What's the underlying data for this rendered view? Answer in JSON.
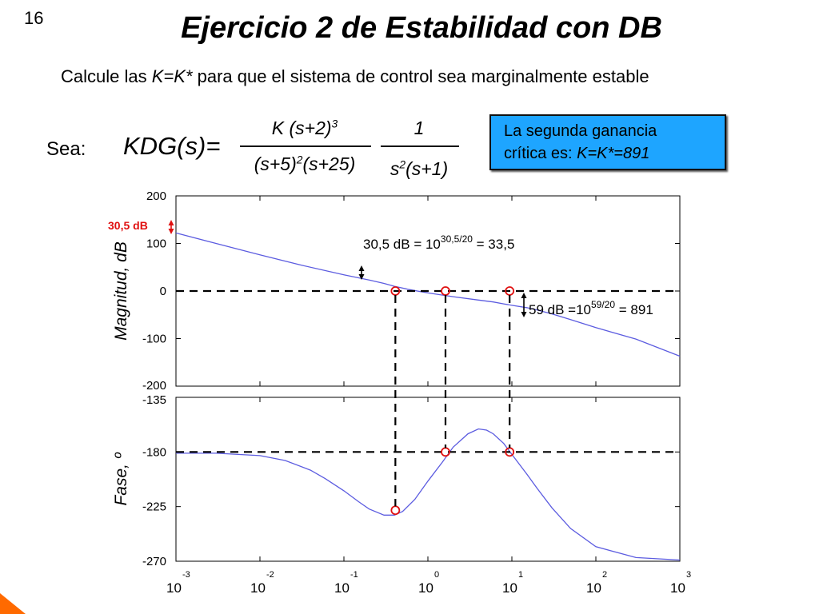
{
  "slide": {
    "number": "16",
    "title": "Ejercicio 2 de Estabilidad con DB",
    "statement_pre": "Calcule las ",
    "statement_k": "K=K*",
    "statement_post": " para que el sistema de control sea marginalmente estable",
    "sea_label": "Sea:",
    "kdg_label": "KDG(s)=",
    "frac1": {
      "num_base": "K (s+2)",
      "num_exp": "3",
      "den_a": "(s+5)",
      "den_a_exp": "2",
      "den_b": "(s+25)"
    },
    "frac2": {
      "num": "1",
      "den_a": "s",
      "den_a_exp": "2",
      "den_b": "(s+1)"
    },
    "callout": {
      "line1": "La segunda ganancia",
      "line2_pre": "crítica es: ",
      "line2_k": "K=K*=891"
    }
  },
  "colors": {
    "curve": "#5c5ce0",
    "marker": "#e01010",
    "callout_bg": "#1ea5ff",
    "annotation_red": "#e01010",
    "corner": "#ff6a00"
  },
  "annotations": {
    "red_db": "30,5 dB",
    "eq1": {
      "pre": "30,5 dB = 10",
      "exp": "30,5/20",
      "post": " = 33,5"
    },
    "eq2": {
      "pre": "59 dB =10",
      "exp": "59/20",
      "post": " = 891"
    }
  },
  "chart_data": [
    {
      "type": "line",
      "ylabel": "Magnitud, dB",
      "xscale": "log",
      "xlim": [
        0.001,
        1000
      ],
      "ylim": [
        -200,
        200
      ],
      "yticks": [
        "200",
        "100",
        "0",
        "-100",
        "-200"
      ],
      "ytick_values": [
        200,
        100,
        0,
        -100,
        -200
      ],
      "series": [
        {
          "x": [
            0.001,
            0.003,
            0.01,
            0.03,
            0.1,
            0.2,
            0.3,
            0.4,
            0.6,
            1,
            2,
            4,
            6,
            8,
            10,
            15,
            20,
            30,
            50,
            100,
            300,
            1000
          ],
          "y": [
            122,
            100,
            76,
            55,
            34,
            23,
            16,
            10,
            3,
            -4,
            -12,
            -19,
            -23,
            -27,
            -30,
            -35,
            -40,
            -48,
            -60,
            -77,
            -101,
            -137
          ]
        }
      ],
      "markers": [
        {
          "x": 0.41,
          "y": 0
        },
        {
          "x": 1.62,
          "y": 0
        },
        {
          "x": 9.4,
          "y": 0
        }
      ],
      "reference_line_y": 0
    },
    {
      "type": "line",
      "ylabel": "Fase, º",
      "xscale": "log",
      "xlim": [
        0.001,
        1000
      ],
      "ylim": [
        -270,
        -135
      ],
      "yticks": [
        "-135",
        "-180",
        "-225",
        "-270"
      ],
      "ytick_values": [
        -135,
        -180,
        -225,
        -270
      ],
      "xticks": [
        {
          "base": "10",
          "exp": "-3"
        },
        {
          "base": "10",
          "exp": "-2"
        },
        {
          "base": "10",
          "exp": "-1"
        },
        {
          "base": "10",
          "exp": "0"
        },
        {
          "base": "10",
          "exp": "1"
        },
        {
          "base": "10",
          "exp": "2"
        },
        {
          "base": "10",
          "exp": "3"
        }
      ],
      "series": [
        {
          "x": [
            0.001,
            0.003,
            0.01,
            0.02,
            0.04,
            0.06,
            0.1,
            0.15,
            0.2,
            0.3,
            0.4,
            0.5,
            0.7,
            1,
            1.5,
            2,
            3,
            4,
            5,
            6,
            8,
            10,
            15,
            20,
            30,
            50,
            100,
            300,
            1000
          ],
          "y": [
            -181,
            -181,
            -183,
            -187,
            -195,
            -202,
            -212,
            -221,
            -227,
            -232,
            -232,
            -229,
            -219,
            -204,
            -188,
            -176,
            -165,
            -161,
            -162,
            -165,
            -173,
            -182,
            -198,
            -210,
            -226,
            -243,
            -258,
            -267,
            -269
          ]
        }
      ],
      "markers": [
        {
          "x": 0.41,
          "y": -228
        },
        {
          "x": 1.62,
          "y": -180
        },
        {
          "x": 9.4,
          "y": -180
        }
      ],
      "reference_line_y": -180
    }
  ]
}
